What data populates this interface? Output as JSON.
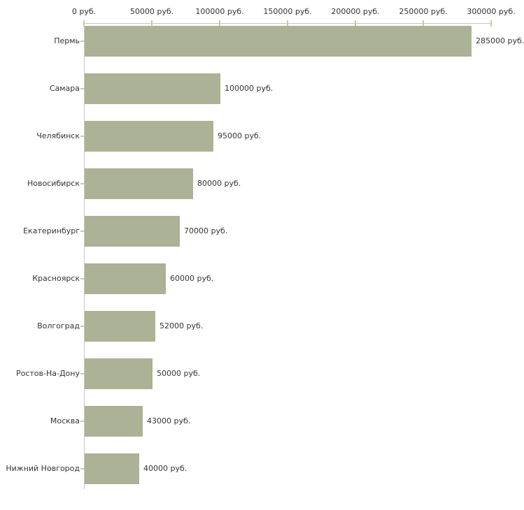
{
  "chart_data": {
    "type": "bar",
    "orientation": "horizontal",
    "title": "",
    "xlabel": "",
    "ylabel": "",
    "unit_suffix": " руб.",
    "categories": [
      "Пермь",
      "Самара",
      "Челябинск",
      "Новосибирск",
      "Екатеринбург",
      "Красноярск",
      "Волгоград",
      "Ростов-На-Дону",
      "Москва",
      "Нижний Новгород"
    ],
    "values": [
      285000,
      100000,
      95000,
      80000,
      70000,
      60000,
      52000,
      50000,
      43000,
      40000
    ],
    "value_labels": [
      "285000 руб.",
      "100000 руб.",
      "95000 руб.",
      "80000 руб.",
      "70000 руб.",
      "60000 руб.",
      "52000 руб.",
      "50000 руб.",
      "43000 руб.",
      "40000 руб."
    ],
    "x_axis": {
      "position": "top",
      "range": [
        0,
        300000
      ],
      "ticks": [
        0,
        50000,
        100000,
        150000,
        200000,
        250000,
        300000
      ],
      "tick_labels": [
        "0 руб.",
        "50000 руб.",
        "100000 руб.",
        "150000 руб.",
        "200000 руб.",
        "250000 руб.",
        "300000 руб."
      ]
    },
    "grid": false,
    "legend": false,
    "colors": {
      "bar": "#abb295",
      "axis_line": "#c6c6c6",
      "tick": "#c9c9a1",
      "text": "#333333",
      "background": "#ffffff"
    }
  }
}
